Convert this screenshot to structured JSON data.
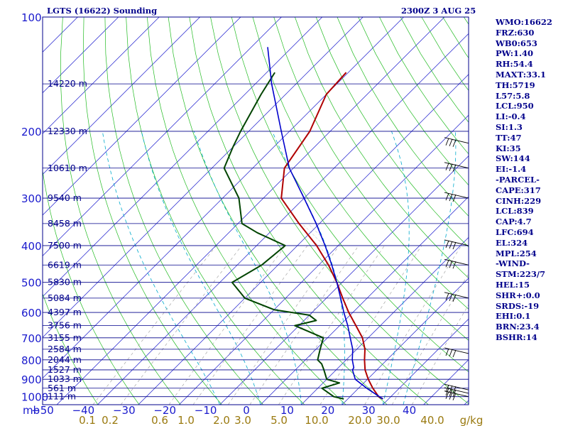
{
  "header": {
    "station": "LGTS (16622) Sounding",
    "valid_time": "2300Z  3 AUG 25"
  },
  "indices": [
    "WMO:16622",
    "FRZ:630",
    "WB0:653",
    "PW:1.40",
    "RH:54.4",
    "MAXT:33.1",
    "TH:5719",
    "L57:5.8",
    "LCL:950",
    "LI:-0.4",
    "SI:1.3",
    "TT:47",
    "KI:35",
    "SW:144",
    "EI:-1.4",
    "-PARCEL-",
    "CAPE:317",
    "CINH:229",
    "LCL:839",
    "CAP:4.7",
    "LFC:694",
    "EL:324",
    "MPL:254",
    "-WIND-",
    "STM:223/7",
    "HEL:15",
    "SHR+:0.0",
    "SRDS:-19",
    "EHI:0.1",
    "BRN:23.4",
    "BSHR:14"
  ],
  "colors": {
    "isobar": "#00008b",
    "isotherm": "#1a1acd",
    "dry_adiabat": "#22bb22",
    "moist_adiabat": "#00aacc",
    "mixing_ratio": "#999999",
    "temperature": "#b00000",
    "dewpoint": "#004400",
    "parcel": "#0000cc",
    "label": "#00008b",
    "mixing_label": "#9a7a10"
  },
  "chart_data": {
    "type": "line",
    "title": "LGTS (16622) Sounding",
    "subtitle": "2300Z  3 AUG 25",
    "pressure_axis_unit": "mb",
    "pressure_ticks": [
      100,
      200,
      300,
      400,
      500,
      600,
      700,
      800,
      900,
      1000
    ],
    "temperature_ticks": [
      -50,
      -40,
      -30,
      -20,
      -10,
      0,
      10,
      20,
      30,
      40
    ],
    "temperature_tick_labels": [
      "−50",
      "−40",
      "−30",
      "−20",
      "−10",
      "0",
      "10",
      "20",
      "30",
      "40"
    ],
    "mixing_ratio_unit": "g/kg",
    "mixing_ratio_labels": [
      "0.1",
      "0.2",
      "0.6",
      "1.0",
      "2.0",
      "3.0",
      "5.0",
      "10.0",
      "20.0",
      "30.0",
      "40.0"
    ],
    "height_labels": [
      {
        "p": 150,
        "label": "14220 m"
      },
      {
        "p": 200,
        "label": "12330 m"
      },
      {
        "p": 250,
        "label": "10610 m"
      },
      {
        "p": 300,
        "label": "9540 m"
      },
      {
        "p": 350,
        "label": "8458 m"
      },
      {
        "p": 400,
        "label": "7500 m"
      },
      {
        "p": 450,
        "label": "6619 m"
      },
      {
        "p": 500,
        "label": "5830 m"
      },
      {
        "p": 550,
        "label": "5084 m"
      },
      {
        "p": 600,
        "label": "4397 m"
      },
      {
        "p": 650,
        "label": "3756 m"
      },
      {
        "p": 700,
        "label": "3155 m"
      },
      {
        "p": 750,
        "label": "2584 m"
      },
      {
        "p": 800,
        "label": "2044 m"
      },
      {
        "p": 850,
        "label": "1527 m"
      },
      {
        "p": 900,
        "label": "1033 m"
      },
      {
        "p": 950,
        "label": "561 m"
      },
      {
        "p": 1000,
        "label": "111 m"
      }
    ],
    "series": [
      {
        "key": "temperature",
        "points": [
          [
            1014,
            28.6
          ],
          [
            1000,
            27
          ],
          [
            950,
            23.5
          ],
          [
            900,
            20.2
          ],
          [
            850,
            17.1
          ],
          [
            800,
            14.5
          ],
          [
            750,
            12
          ],
          [
            700,
            8.6
          ],
          [
            650,
            4
          ],
          [
            600,
            -1
          ],
          [
            550,
            -6
          ],
          [
            500,
            -11.3
          ],
          [
            450,
            -17.6
          ],
          [
            400,
            -25.3
          ],
          [
            350,
            -35
          ],
          [
            300,
            -45.6
          ],
          [
            250,
            -52.2
          ],
          [
            200,
            -55
          ],
          [
            160,
            -60
          ],
          [
            140,
            -60.5
          ]
        ]
      },
      {
        "key": "dewpoint",
        "points": [
          [
            1014,
            19
          ],
          [
            1000,
            16
          ],
          [
            950,
            11
          ],
          [
            920,
            14
          ],
          [
            900,
            10
          ],
          [
            850,
            7
          ],
          [
            820,
            5
          ],
          [
            800,
            3
          ],
          [
            750,
            1
          ],
          [
            700,
            -1
          ],
          [
            650,
            -11
          ],
          [
            630,
            -7
          ],
          [
            610,
            -10
          ],
          [
            590,
            -20
          ],
          [
            550,
            -30
          ],
          [
            500,
            -37
          ],
          [
            450,
            -34
          ],
          [
            400,
            -33
          ],
          [
            370,
            -43
          ],
          [
            350,
            -49
          ],
          [
            300,
            -56
          ],
          [
            250,
            -67
          ],
          [
            220,
            -70
          ],
          [
            200,
            -72
          ],
          [
            160,
            -76
          ],
          [
            140,
            -78
          ]
        ]
      },
      {
        "key": "parcel",
        "points": [
          [
            1014,
            28.6
          ],
          [
            950,
            22
          ],
          [
            900,
            17
          ],
          [
            850,
            14
          ],
          [
            839,
            13.8
          ],
          [
            800,
            11.5
          ],
          [
            750,
            9
          ],
          [
            700,
            5.6
          ],
          [
            650,
            2
          ],
          [
            600,
            -2.2
          ],
          [
            550,
            -6.5
          ],
          [
            500,
            -11.3
          ],
          [
            450,
            -16.8
          ],
          [
            400,
            -23.2
          ],
          [
            350,
            -30.8
          ],
          [
            300,
            -40
          ],
          [
            250,
            -51
          ],
          [
            200,
            -62
          ],
          [
            150,
            -76
          ],
          [
            120,
            -86
          ]
        ]
      }
    ],
    "winds_barbs_pressures": [
      215,
      250,
      300,
      400,
      450,
      550,
      770,
      960,
      980,
      1000
    ],
    "grid": true,
    "legend": "none"
  }
}
